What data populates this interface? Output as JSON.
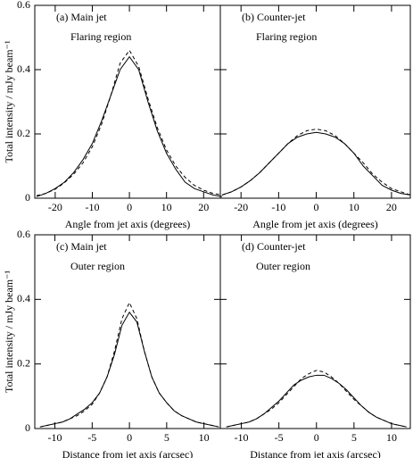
{
  "chart_data": [
    {
      "type": "line",
      "annotations": [
        "(a) Main jet",
        "Flaring region"
      ],
      "xlabel": "Angle from jet axis (degrees)",
      "ylabel": "Total intensity / mJy beam⁻¹",
      "x": [
        -25,
        -22.5,
        -20,
        -17.5,
        -15,
        -12.5,
        -10,
        -7.5,
        -5,
        -2.5,
        0,
        2.5,
        5,
        7.5,
        10,
        12.5,
        15,
        17.5,
        20,
        22.5,
        25
      ],
      "series": [
        {
          "style": "solid",
          "color": "#000000",
          "values": [
            0.005,
            0.015,
            0.03,
            0.05,
            0.08,
            0.12,
            0.17,
            0.24,
            0.32,
            0.4,
            0.44,
            0.4,
            0.3,
            0.21,
            0.14,
            0.09,
            0.05,
            0.03,
            0.02,
            0.01,
            0.005
          ]
        },
        {
          "style": "dashed",
          "color": "#000000",
          "values": [
            0.008,
            0.015,
            0.028,
            0.048,
            0.075,
            0.11,
            0.16,
            0.23,
            0.32,
            0.42,
            0.46,
            0.41,
            0.31,
            0.22,
            0.15,
            0.1,
            0.065,
            0.04,
            0.025,
            0.015,
            0.01
          ]
        }
      ],
      "xlim": [
        -25.5,
        24.5
      ],
      "xticks": [
        -20,
        -10,
        0,
        10,
        20
      ],
      "ylim": [
        0,
        0.6
      ],
      "yticks": [
        0,
        0.2,
        0.4,
        0.6
      ],
      "ytick_labels": true
    },
    {
      "type": "line",
      "annotations": [
        "(b) Counter-jet",
        "Flaring region"
      ],
      "xlabel": "Angle from jet axis (degrees)",
      "x": [
        -25,
        -22.5,
        -20,
        -17.5,
        -15,
        -12.5,
        -10,
        -7.5,
        -5,
        -2.5,
        0,
        2.5,
        5,
        7.5,
        10,
        12.5,
        15,
        17.5,
        20,
        22.5,
        25
      ],
      "series": [
        {
          "style": "solid",
          "color": "#000000",
          "values": [
            0.01,
            0.02,
            0.035,
            0.055,
            0.08,
            0.11,
            0.14,
            0.17,
            0.19,
            0.2,
            0.205,
            0.2,
            0.19,
            0.17,
            0.14,
            0.1,
            0.07,
            0.04,
            0.025,
            0.015,
            0.01
          ]
        },
        {
          "style": "dashed",
          "color": "#000000",
          "values": [
            0.01,
            0.02,
            0.035,
            0.055,
            0.08,
            0.11,
            0.14,
            0.17,
            0.195,
            0.21,
            0.215,
            0.21,
            0.195,
            0.17,
            0.14,
            0.11,
            0.075,
            0.05,
            0.03,
            0.02,
            0.01
          ]
        }
      ],
      "xlim": [
        -25.5,
        25
      ],
      "xticks": [
        -20,
        -10,
        0,
        10,
        20
      ],
      "ylim": [
        0,
        0.6
      ],
      "yticks": [
        0,
        0.2,
        0.4,
        0.6
      ],
      "ytick_labels": false
    },
    {
      "type": "line",
      "annotations": [
        "(c) Main jet",
        "Outer region"
      ],
      "xlabel": "Distance from jet axis (arcsec)",
      "ylabel": "Total intensity / mJy beam⁻¹",
      "x": [
        -12,
        -11,
        -10,
        -9,
        -8,
        -7,
        -6,
        -5,
        -4,
        -3,
        -2,
        -1,
        0,
        1,
        2,
        3,
        4,
        5,
        6,
        7,
        8,
        9,
        10,
        11,
        12
      ],
      "series": [
        {
          "style": "solid",
          "color": "#000000",
          "values": [
            0.005,
            0.01,
            0.015,
            0.02,
            0.03,
            0.045,
            0.06,
            0.08,
            0.11,
            0.16,
            0.23,
            0.32,
            0.36,
            0.33,
            0.24,
            0.16,
            0.11,
            0.08,
            0.055,
            0.04,
            0.03,
            0.02,
            0.015,
            0.01,
            0.005
          ]
        },
        {
          "style": "dashed",
          "color": "#000000",
          "values": [
            0.005,
            0.01,
            0.015,
            0.02,
            0.03,
            0.04,
            0.055,
            0.075,
            0.11,
            0.16,
            0.24,
            0.34,
            0.39,
            0.34,
            0.24,
            0.16,
            0.11,
            0.08,
            0.055,
            0.04,
            0.03,
            0.02,
            0.015,
            0.01,
            0.005
          ]
        }
      ],
      "xlim": [
        -12.7,
        12.2
      ],
      "xticks": [
        -10,
        -5,
        0,
        5,
        10
      ],
      "ylim": [
        0,
        0.6
      ],
      "yticks": [
        0,
        0.2,
        0.4,
        0.6
      ],
      "ytick_labels": true
    },
    {
      "type": "line",
      "annotations": [
        "(d) Counter-jet",
        "Outer region"
      ],
      "xlabel": "Distance from jet axis (arcsec)",
      "x": [
        -12,
        -11,
        -10,
        -9,
        -8,
        -7,
        -6,
        -5,
        -4,
        -3,
        -2,
        -1,
        0,
        1,
        2,
        3,
        4,
        5,
        6,
        7,
        8,
        9,
        10,
        11,
        12
      ],
      "series": [
        {
          "style": "solid",
          "color": "#000000",
          "values": [
            0.005,
            0.01,
            0.015,
            0.02,
            0.03,
            0.045,
            0.065,
            0.085,
            0.11,
            0.135,
            0.15,
            0.16,
            0.165,
            0.165,
            0.155,
            0.14,
            0.12,
            0.095,
            0.07,
            0.05,
            0.035,
            0.025,
            0.015,
            0.01,
            0.005
          ]
        },
        {
          "style": "dashed",
          "color": "#000000",
          "values": [
            0.005,
            0.01,
            0.015,
            0.02,
            0.03,
            0.045,
            0.06,
            0.08,
            0.105,
            0.13,
            0.155,
            0.17,
            0.18,
            0.175,
            0.16,
            0.14,
            0.115,
            0.09,
            0.07,
            0.05,
            0.035,
            0.025,
            0.015,
            0.01,
            0.005
          ]
        }
      ],
      "xlim": [
        -12.8,
        12.5
      ],
      "xticks": [
        -10,
        -5,
        0,
        5,
        10
      ],
      "ylim": [
        0,
        0.6
      ],
      "yticks": [
        0,
        0.2,
        0.4,
        0.6
      ],
      "ytick_labels": false
    }
  ]
}
